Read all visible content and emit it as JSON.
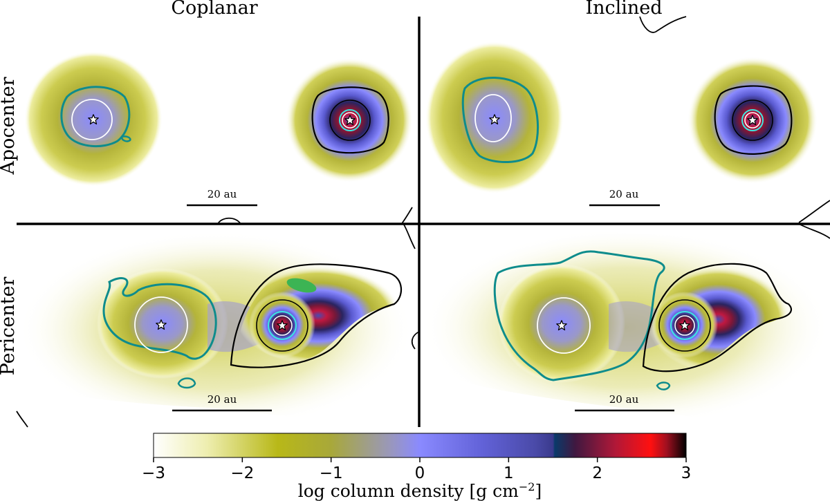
{
  "chart_data": {
    "type": "heatmap",
    "columns": [
      "Coplanar",
      "Inclined"
    ],
    "rows": [
      "Apocenter",
      "Pericenter"
    ],
    "scale_bar": "20 au",
    "colorbar": {
      "label_prefix": "log column density [g cm",
      "label_exp": "−2",
      "label_suffix": "]",
      "range": [
        -3,
        3
      ],
      "ticks": [
        -3,
        -2,
        -1,
        0,
        1,
        2,
        3
      ],
      "tick_labels": [
        "−3",
        "−2",
        "−1",
        "0",
        "1",
        "2",
        "3"
      ],
      "stops": [
        {
          "v": -3.0,
          "c": "#ffffff"
        },
        {
          "v": -2.4,
          "c": "#eeeeb0"
        },
        {
          "v": -1.6,
          "c": "#b8b818"
        },
        {
          "v": -1.0,
          "c": "#a8a83a"
        },
        {
          "v": -0.35,
          "c": "#9a98b8"
        },
        {
          "v": 0.0,
          "c": "#8a8aff"
        },
        {
          "v": 0.7,
          "c": "#6262d8"
        },
        {
          "v": 1.3,
          "c": "#4a4aa8"
        },
        {
          "v": 1.5,
          "c": "#3a3a8c"
        },
        {
          "v": 1.52,
          "c": "#0a3a6a"
        },
        {
          "v": 1.75,
          "c": "#401840"
        },
        {
          "v": 2.2,
          "c": "#b01838"
        },
        {
          "v": 2.6,
          "c": "#ff1010"
        },
        {
          "v": 2.78,
          "c": "#a01020"
        },
        {
          "v": 3.0,
          "c": "#000000"
        }
      ]
    },
    "panels": [
      {
        "column": "Coplanar",
        "row": "Apocenter",
        "primary_peak": 0.2,
        "secondary_peak": 2.5
      },
      {
        "column": "Inclined",
        "row": "Apocenter",
        "primary_peak": 0.2,
        "secondary_peak": 2.5
      },
      {
        "column": "Coplanar",
        "row": "Pericenter",
        "primary_peak": 0.1,
        "secondary_peak": 2.5
      },
      {
        "column": "Inclined",
        "row": "Pericenter",
        "primary_peak": 0.0,
        "secondary_peak": 2.5
      }
    ]
  }
}
